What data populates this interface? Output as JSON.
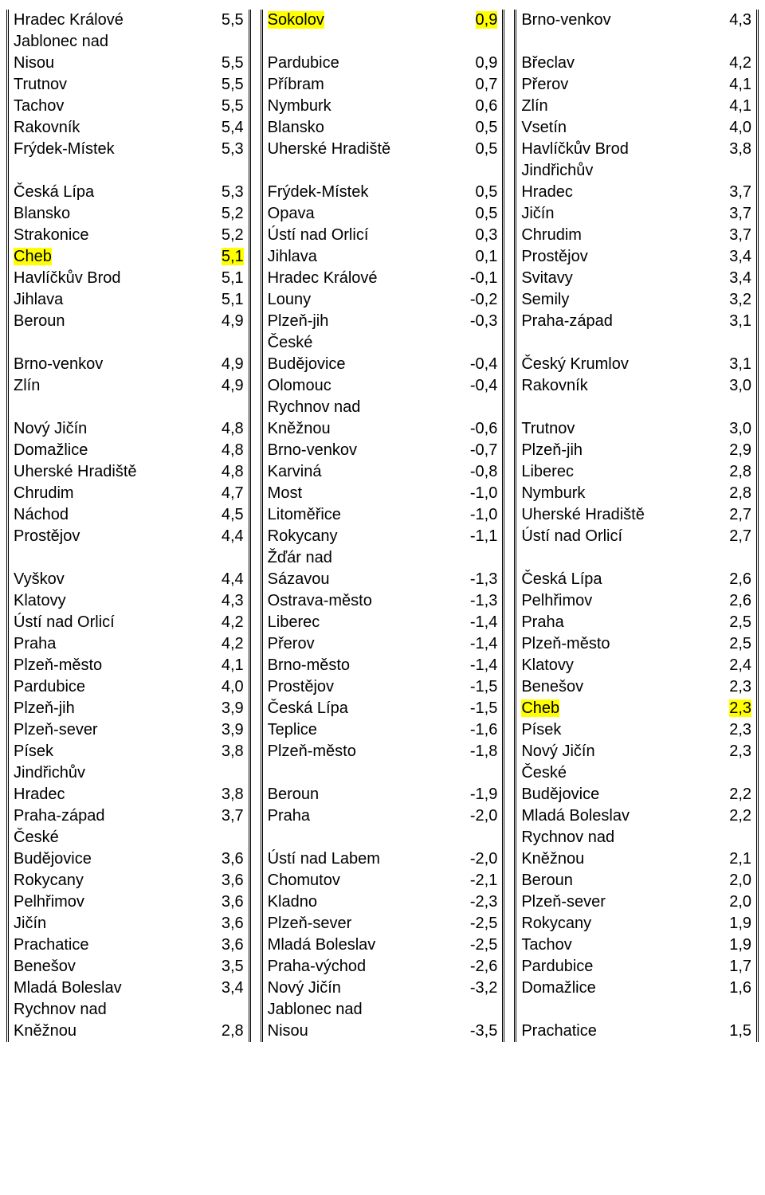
{
  "highlight_color": "#ffff00",
  "text_color": "#000000",
  "background_color": "#ffffff",
  "font_family": "Arial",
  "font_size_pt": 15,
  "columns": [
    {
      "rows": [
        {
          "name": "Hradec Králové",
          "value": "5,5"
        },
        {
          "name": "Jablonec nad Nisou",
          "value": "5,5"
        },
        {
          "name": "Trutnov",
          "value": "5,5"
        },
        {
          "name": "Tachov",
          "value": "5,5"
        },
        {
          "name": "Rakovník",
          "value": "5,4"
        },
        {
          "name": "Frýdek-Místek",
          "value": "5,3"
        },
        {
          "name": "Česká Lípa",
          "value": "5,3",
          "gap_before": true
        },
        {
          "name": "Blansko",
          "value": "5,2"
        },
        {
          "name": "Strakonice",
          "value": "5,2"
        },
        {
          "name": "Cheb",
          "value": "5,1",
          "highlight": true
        },
        {
          "name": "Havlíčkův Brod",
          "value": "5,1"
        },
        {
          "name": "Jihlava",
          "value": "5,1"
        },
        {
          "name": "Beroun",
          "value": "4,9"
        },
        {
          "name": "Brno-venkov",
          "value": "4,9",
          "gap_before": true
        },
        {
          "name": "Zlín",
          "value": "4,9"
        },
        {
          "name": "Nový Jičín",
          "value": "4,8",
          "gap_before": true
        },
        {
          "name": "Domažlice",
          "value": "4,8"
        },
        {
          "name": "Uherské Hradiště",
          "value": "4,8"
        },
        {
          "name": "Chrudim",
          "value": "4,7"
        },
        {
          "name": "Náchod",
          "value": "4,5"
        },
        {
          "name": "Prostějov",
          "value": "4,4"
        },
        {
          "name": "Vyškov",
          "value": "4,4",
          "gap_before": true
        },
        {
          "name": "Klatovy",
          "value": "4,3"
        },
        {
          "name": "Ústí nad Orlicí",
          "value": "4,2"
        },
        {
          "name": "Praha",
          "value": "4,2"
        },
        {
          "name": "Plzeň-město",
          "value": "4,1"
        },
        {
          "name": "Pardubice",
          "value": "4,0"
        },
        {
          "name": "Plzeň-jih",
          "value": "3,9"
        },
        {
          "name": "Plzeň-sever",
          "value": "3,9"
        },
        {
          "name": "Písek",
          "value": "3,8"
        },
        {
          "name": "Jindřichův Hradec",
          "value": "3,8"
        },
        {
          "name": "Praha-západ",
          "value": "3,7"
        },
        {
          "name": "České Budějovice",
          "value": "3,6"
        },
        {
          "name": "Rokycany",
          "value": "3,6"
        },
        {
          "name": "Pelhřimov",
          "value": "3,6"
        },
        {
          "name": "Jičín",
          "value": "3,6"
        },
        {
          "name": "Prachatice",
          "value": "3,6"
        },
        {
          "name": "Benešov",
          "value": "3,5"
        },
        {
          "name": "Mladá Boleslav",
          "value": "3,4"
        },
        {
          "name": "Rychnov nad Kněžnou",
          "value": "2,8"
        }
      ]
    },
    {
      "rows": [
        {
          "name": "Sokolov",
          "value": "0,9",
          "highlight": true
        },
        {
          "name": "Pardubice",
          "value": "0,9",
          "gap_before": true
        },
        {
          "name": "Příbram",
          "value": "0,7"
        },
        {
          "name": "Nymburk",
          "value": "0,6"
        },
        {
          "name": "Blansko",
          "value": "0,5"
        },
        {
          "name": "Uherské Hradiště",
          "value": "0,5"
        },
        {
          "name": "Frýdek-Místek",
          "value": "0,5",
          "gap_before": true
        },
        {
          "name": "Opava",
          "value": "0,5"
        },
        {
          "name": "Ústí nad Orlicí",
          "value": "0,3"
        },
        {
          "name": "Jihlava",
          "value": "0,1"
        },
        {
          "name": "Hradec Králové",
          "value": "-0,1"
        },
        {
          "name": "Louny",
          "value": "-0,2"
        },
        {
          "name": "Plzeň-jih",
          "value": "-0,3"
        },
        {
          "name": "České Budějovice",
          "value": "-0,4"
        },
        {
          "name": "Olomouc",
          "value": "-0,4"
        },
        {
          "name": "Rychnov nad Kněžnou",
          "value": "-0,6"
        },
        {
          "name": "Brno-venkov",
          "value": "-0,7"
        },
        {
          "name": "Karviná",
          "value": "-0,8"
        },
        {
          "name": "Most",
          "value": "-1,0"
        },
        {
          "name": "Litoměřice",
          "value": "-1,0"
        },
        {
          "name": "Rokycany",
          "value": "-1,1"
        },
        {
          "name": "Žďár nad Sázavou",
          "value": "-1,3"
        },
        {
          "name": "Ostrava-město",
          "value": "-1,3"
        },
        {
          "name": "Liberec",
          "value": "-1,4"
        },
        {
          "name": "Přerov",
          "value": "-1,4"
        },
        {
          "name": "Brno-město",
          "value": "-1,4"
        },
        {
          "name": "Prostějov",
          "value": "-1,5"
        },
        {
          "name": "Česká Lípa",
          "value": "-1,5"
        },
        {
          "name": "Teplice",
          "value": "-1,6"
        },
        {
          "name": "Plzeň-město",
          "value": "-1,8"
        },
        {
          "name": "Beroun",
          "value": "-1,9",
          "gap_before": true
        },
        {
          "name": "Praha",
          "value": "-2,0"
        },
        {
          "name": "Ústí nad Labem",
          "value": "-2,0",
          "gap_before": true
        },
        {
          "name": "Chomutov",
          "value": "-2,1"
        },
        {
          "name": "Kladno",
          "value": "-2,3"
        },
        {
          "name": "Plzeň-sever",
          "value": "-2,5"
        },
        {
          "name": "Mladá Boleslav",
          "value": "-2,5"
        },
        {
          "name": "Praha-východ",
          "value": "-2,6"
        },
        {
          "name": "Nový Jičín",
          "value": "-3,2"
        },
        {
          "name": "Jablonec nad Nisou",
          "value": "-3,5"
        }
      ]
    },
    {
      "rows": [
        {
          "name": "Brno-venkov",
          "value": "4,3"
        },
        {
          "name": "Břeclav",
          "value": "4,2",
          "gap_before": true
        },
        {
          "name": "Přerov",
          "value": "4,1"
        },
        {
          "name": "Zlín",
          "value": "4,1"
        },
        {
          "name": "Vsetín",
          "value": "4,0"
        },
        {
          "name": "Havlíčkův Brod",
          "value": "3,8"
        },
        {
          "name": "Jindřichův Hradec",
          "value": "3,7"
        },
        {
          "name": "Jičín",
          "value": "3,7"
        },
        {
          "name": "Chrudim",
          "value": "3,7"
        },
        {
          "name": "Prostějov",
          "value": "3,4"
        },
        {
          "name": "Svitavy",
          "value": "3,4"
        },
        {
          "name": "Semily",
          "value": "3,2"
        },
        {
          "name": "Praha-západ",
          "value": "3,1"
        },
        {
          "name": "Český Krumlov",
          "value": "3,1",
          "gap_before": true
        },
        {
          "name": "Rakovník",
          "value": "3,0"
        },
        {
          "name": "Trutnov",
          "value": "3,0",
          "gap_before": true
        },
        {
          "name": "Plzeň-jih",
          "value": "2,9"
        },
        {
          "name": "Liberec",
          "value": "2,8"
        },
        {
          "name": "Nymburk",
          "value": "2,8"
        },
        {
          "name": "Uherské Hradiště",
          "value": "2,7"
        },
        {
          "name": "Ústí nad Orlicí",
          "value": "2,7"
        },
        {
          "name": "Česká Lípa",
          "value": "2,6",
          "gap_before": true
        },
        {
          "name": "Pelhřimov",
          "value": "2,6"
        },
        {
          "name": "Praha",
          "value": "2,5"
        },
        {
          "name": "Plzeň-město",
          "value": "2,5"
        },
        {
          "name": "Klatovy",
          "value": "2,4"
        },
        {
          "name": "Benešov",
          "value": "2,3"
        },
        {
          "name": "Cheb",
          "value": "2,3",
          "highlight": true
        },
        {
          "name": "Písek",
          "value": "2,3"
        },
        {
          "name": "Nový Jičín",
          "value": "2,3"
        },
        {
          "name": "České Budějovice",
          "value": "2,2"
        },
        {
          "name": "Mladá Boleslav",
          "value": "2,2"
        },
        {
          "name": "Rychnov nad Kněžnou",
          "value": "2,1"
        },
        {
          "name": "Beroun",
          "value": "2,0"
        },
        {
          "name": "Plzeň-sever",
          "value": "2,0"
        },
        {
          "name": "Rokycany",
          "value": "1,9"
        },
        {
          "name": "Tachov",
          "value": "1,9"
        },
        {
          "name": "Pardubice",
          "value": "1,7"
        },
        {
          "name": "Domažlice",
          "value": "1,6"
        },
        {
          "name": "Prachatice",
          "value": "1,5",
          "gap_before": true
        }
      ]
    }
  ]
}
